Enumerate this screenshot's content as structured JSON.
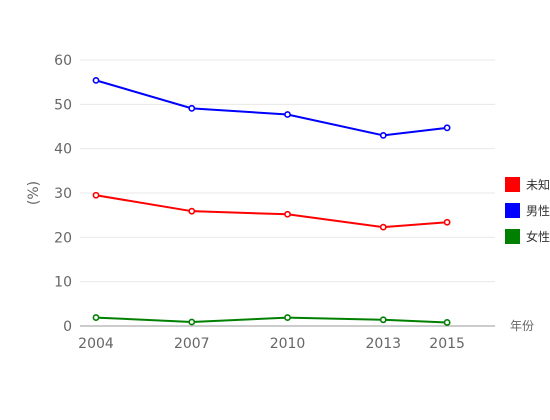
{
  "chart_data": {
    "type": "line",
    "title": "",
    "xlabel": "年份",
    "ylabel": "(%)",
    "x": [
      2004,
      2007,
      2010,
      2013,
      2015
    ],
    "xticks": [
      "2004",
      "2007",
      "2010",
      "2013",
      "2015"
    ],
    "xlim": [
      2004,
      2016.5
    ],
    "ylim": [
      0,
      60
    ],
    "yticks": [
      "0",
      "10",
      "20",
      "30",
      "40",
      "50",
      "60"
    ],
    "grid": "horizontal",
    "legend_position": "right",
    "series": [
      {
        "name": "未知",
        "color": "#ff0000",
        "values": [
          29.5,
          25.9,
          25.2,
          22.3,
          23.4
        ]
      },
      {
        "name": "男性",
        "color": "#0000ff",
        "values": [
          55.4,
          49.1,
          47.7,
          43.0,
          44.7
        ]
      },
      {
        "name": "女性",
        "color": "#008000",
        "values": [
          1.9,
          0.9,
          1.9,
          1.4,
          0.8
        ]
      }
    ]
  }
}
